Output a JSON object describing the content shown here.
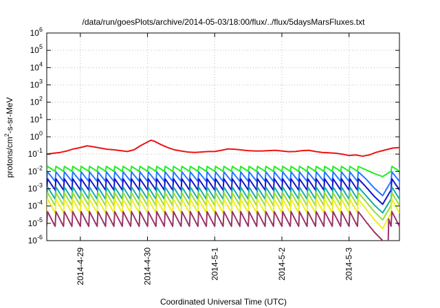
{
  "chart_data": {
    "type": "line",
    "title": "/data/run/goesPlots/archive/2014-05-03/18:00/flux/../flux/5daysMarsFluxes.txt",
    "xlabel": "Coordinated Universal Time (UTC)",
    "ylabel": "protons/cm²-s-sr-MeV",
    "ylabel_parts": {
      "main": "protons/cm",
      "sup": "2",
      "rest": "-s-sr-MeV"
    },
    "yscale": "log",
    "ylim": [
      1e-06,
      1000000.0
    ],
    "xlim": [
      "2014-04-28 12:00",
      "2014-05-03 18:00"
    ],
    "grid": true,
    "yticks": [
      {
        "value": 1e-06,
        "base": "10",
        "exp": "-6"
      },
      {
        "value": 1e-05,
        "base": "10",
        "exp": "-5"
      },
      {
        "value": 0.0001,
        "base": "10",
        "exp": "-4"
      },
      {
        "value": 0.001,
        "base": "10",
        "exp": "-3"
      },
      {
        "value": 0.01,
        "base": "10",
        "exp": "-2"
      },
      {
        "value": 0.1,
        "base": "10",
        "exp": "-1"
      },
      {
        "value": 1,
        "base": "10",
        "exp": "0"
      },
      {
        "value": 10.0,
        "base": "10",
        "exp": "1"
      },
      {
        "value": 100.0,
        "base": "10",
        "exp": "2"
      },
      {
        "value": 1000.0,
        "base": "10",
        "exp": "3"
      },
      {
        "value": 10000.0,
        "base": "10",
        "exp": "4"
      },
      {
        "value": 100000.0,
        "base": "10",
        "exp": "5"
      },
      {
        "value": 1000000.0,
        "base": "10",
        "exp": "6"
      }
    ],
    "xticks": [
      {
        "label": "2014-4-29",
        "day": 1
      },
      {
        "label": "2014-4-30",
        "day": 2
      },
      {
        "label": "2014-5-1",
        "day": 3
      },
      {
        "label": "2014-5-2",
        "day": 4
      },
      {
        "label": "2014-5-3",
        "day": 5
      }
    ],
    "series": [
      {
        "color": "#ee1111",
        "values": [
          [
            0.0,
            -1.0
          ],
          [
            0.1,
            -0.95
          ],
          [
            0.2,
            -0.9
          ],
          [
            0.3,
            -0.82
          ],
          [
            0.4,
            -0.7
          ],
          [
            0.5,
            -0.62
          ],
          [
            0.6,
            -0.52
          ],
          [
            0.7,
            -0.58
          ],
          [
            0.8,
            -0.65
          ],
          [
            0.9,
            -0.72
          ],
          [
            1.0,
            -0.75
          ],
          [
            1.1,
            -0.8
          ],
          [
            1.2,
            -0.85
          ],
          [
            1.3,
            -0.75
          ],
          [
            1.4,
            -0.5
          ],
          [
            1.5,
            -0.3
          ],
          [
            1.55,
            -0.2
          ],
          [
            1.6,
            -0.25
          ],
          [
            1.7,
            -0.45
          ],
          [
            1.8,
            -0.62
          ],
          [
            1.9,
            -0.75
          ],
          [
            2.0,
            -0.82
          ],
          [
            2.1,
            -0.88
          ],
          [
            2.2,
            -0.9
          ],
          [
            2.3,
            -0.88
          ],
          [
            2.4,
            -0.85
          ],
          [
            2.5,
            -0.85
          ],
          [
            2.6,
            -0.78
          ],
          [
            2.7,
            -0.7
          ],
          [
            2.8,
            -0.72
          ],
          [
            2.9,
            -0.76
          ],
          [
            3.0,
            -0.8
          ],
          [
            3.1,
            -0.82
          ],
          [
            3.2,
            -0.82
          ],
          [
            3.3,
            -0.8
          ],
          [
            3.4,
            -0.78
          ],
          [
            3.5,
            -0.82
          ],
          [
            3.6,
            -0.86
          ],
          [
            3.7,
            -0.85
          ],
          [
            3.8,
            -0.8
          ],
          [
            3.9,
            -0.78
          ],
          [
            4.0,
            -0.85
          ],
          [
            4.1,
            -0.9
          ],
          [
            4.2,
            -0.92
          ],
          [
            4.3,
            -0.95
          ],
          [
            4.4,
            -1.0
          ],
          [
            4.5,
            -1.08
          ],
          [
            4.6,
            -1.05
          ],
          [
            4.7,
            -1.12
          ],
          [
            4.8,
            -1.05
          ],
          [
            4.9,
            -0.9
          ],
          [
            5.0,
            -0.8
          ],
          [
            5.1,
            -0.7
          ],
          [
            5.15,
            -0.65
          ],
          [
            5.25,
            -0.62
          ]
        ]
      },
      {
        "color": "#22ee22",
        "center": -1.85,
        "amp": 0.28,
        "drop_to": -2.3
      },
      {
        "color": "#2277ff",
        "center": -2.3,
        "amp": 0.55,
        "drop_to": -3.4
      },
      {
        "color": "#1111cc",
        "center": -2.75,
        "amp": 0.65,
        "drop_to": -3.9
      },
      {
        "color": "#11aaaa",
        "center": -3.25,
        "amp": 0.7,
        "drop_to": -4.4
      },
      {
        "color": "#99dd33",
        "center": -3.6,
        "amp": 0.75,
        "drop_to": -4.8
      },
      {
        "color": "#eeee22",
        "center": -4.0,
        "amp": 0.8,
        "drop_to": -5.3
      },
      {
        "color": "#993366",
        "center": -4.75,
        "amp": 0.85,
        "drop_to": -6.0
      }
    ]
  }
}
